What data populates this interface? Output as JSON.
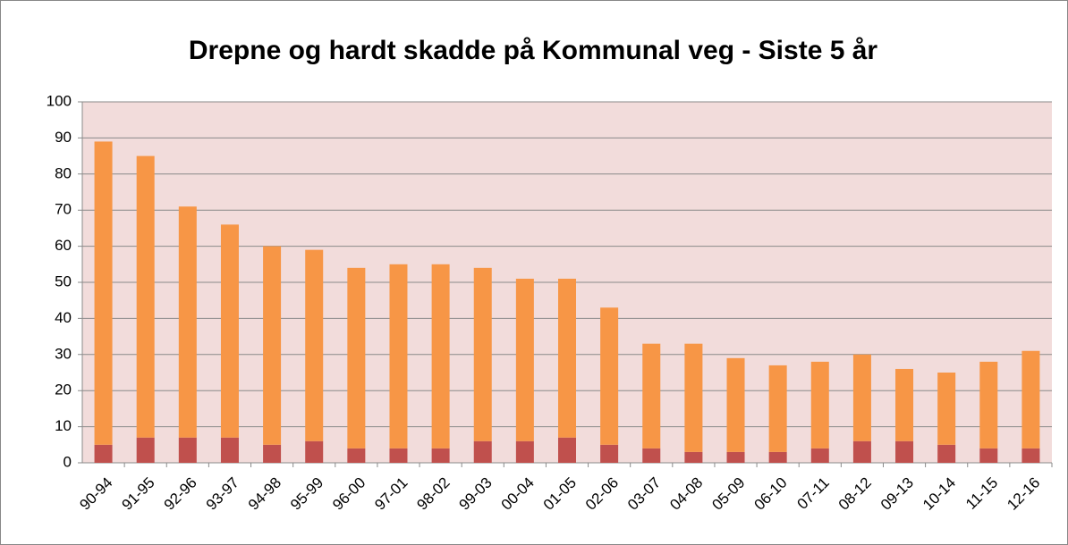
{
  "chart_data": {
    "type": "stacked_bar",
    "title": "Drepne og hardt skadde på Kommunal veg - Siste 5 år",
    "categories": [
      "90-94",
      "91-95",
      "92-96",
      "93-97",
      "94-98",
      "95-99",
      "96-00",
      "97-01",
      "98-02",
      "99-03",
      "00-04",
      "01-05",
      "02-06",
      "03-07",
      "04-08",
      "05-09",
      "06-10",
      "07-11",
      "08-12",
      "09-13",
      "10-14",
      "11-15",
      "12-16"
    ],
    "series": [
      {
        "color": "#c0504d",
        "values": [
          5,
          7,
          7,
          7,
          5,
          6,
          4,
          4,
          4,
          6,
          6,
          7,
          5,
          4,
          3,
          3,
          3,
          4,
          6,
          6,
          5,
          4,
          4
        ]
      },
      {
        "color": "#f79646",
        "values": [
          84,
          78,
          64,
          59,
          55,
          53,
          50,
          51,
          51,
          48,
          45,
          44,
          38,
          29,
          30,
          26,
          24,
          24,
          24,
          20,
          20,
          24,
          27
        ]
      }
    ],
    "ylim": [
      0,
      100
    ],
    "yticks": [
      0,
      10,
      20,
      30,
      40,
      50,
      60,
      70,
      80,
      90,
      100
    ],
    "grid": true,
    "plot_background": "#f2dcdb"
  }
}
